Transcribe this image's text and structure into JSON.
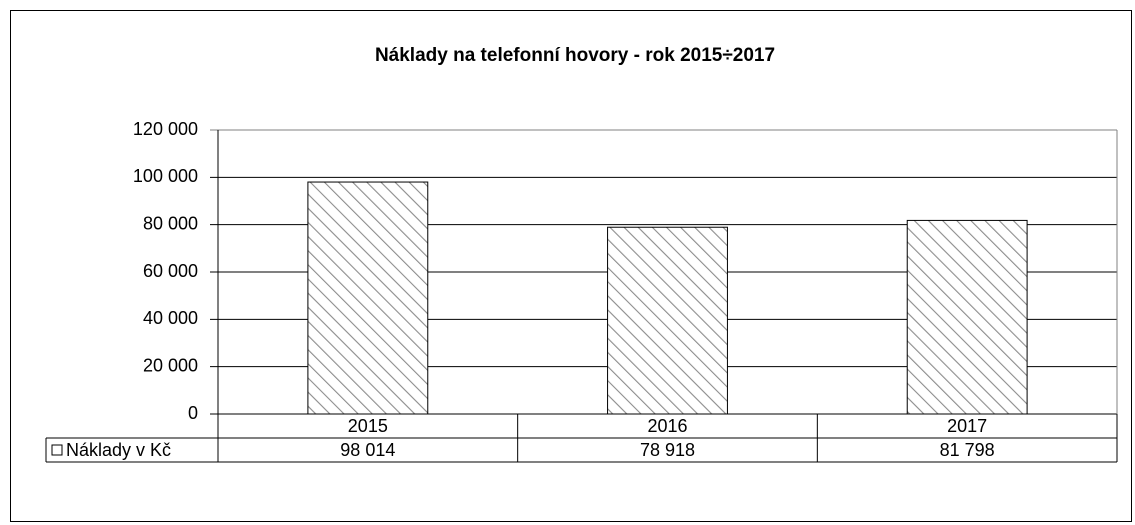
{
  "chart_data": {
    "type": "bar",
    "title": "Náklady na telefonní hovory  - rok 2015÷2017",
    "categories": [
      "2015",
      "2016",
      "2017"
    ],
    "series": [
      {
        "name": "Náklady v Kč",
        "color": "#8c8c8c",
        "values": [
          98014,
          78918,
          81798
        ],
        "value_labels": [
          "98 014",
          "78 918",
          "81 798"
        ]
      }
    ],
    "ylim": [
      0,
      120000
    ],
    "yticks": [
      0,
      {
        "value": 20000,
        "label": "20 000"
      },
      {
        "value": 40000,
        "label": "40 000"
      },
      {
        "value": 60000,
        "label": "60 000"
      },
      {
        "value": 80000,
        "label": "80 000"
      },
      {
        "value": 100000,
        "label": "100 000"
      },
      {
        "value": 120000,
        "label": "120 000"
      }
    ],
    "grid": true,
    "data_table": true
  }
}
